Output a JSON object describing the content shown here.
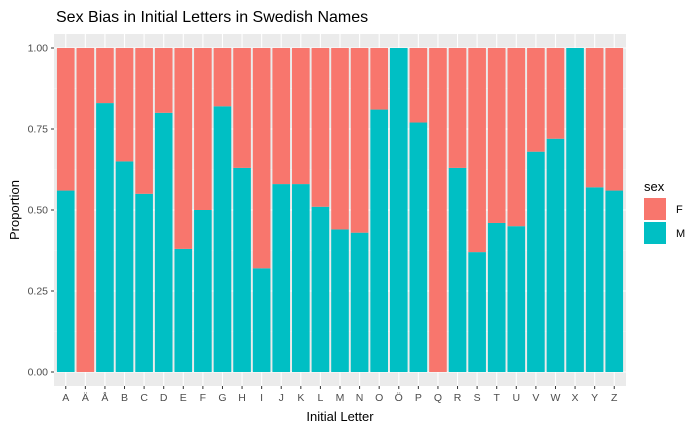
{
  "chart_data": {
    "type": "bar",
    "stacked": true,
    "title": "Sex Bias in Initial Letters in Swedish Names",
    "xlabel": "Initial Letter",
    "ylabel": "Proportion",
    "ylim": [
      0,
      1
    ],
    "yticks": [
      "0.00",
      "0.25",
      "0.50",
      "0.75",
      "1.00"
    ],
    "grid": true,
    "legend": {
      "title": "sex",
      "position": "right"
    },
    "categories": [
      "A",
      "Ä",
      "Å",
      "B",
      "C",
      "D",
      "E",
      "F",
      "G",
      "H",
      "I",
      "J",
      "K",
      "L",
      "M",
      "N",
      "O",
      "Ö",
      "P",
      "Q",
      "R",
      "S",
      "T",
      "U",
      "V",
      "W",
      "X",
      "Y",
      "Z"
    ],
    "series": [
      {
        "name": "F",
        "color": "#F8766D",
        "values": [
          0.44,
          1.0,
          0.17,
          0.35,
          0.45,
          0.2,
          0.62,
          0.5,
          0.18,
          0.37,
          0.68,
          0.42,
          0.42,
          0.49,
          0.56,
          0.57,
          0.19,
          0.0,
          0.23,
          1.0,
          0.37,
          0.63,
          0.54,
          0.55,
          0.32,
          0.28,
          0.0,
          0.43,
          0.44
        ]
      },
      {
        "name": "M",
        "color": "#00BFC4",
        "values": [
          0.56,
          0.0,
          0.83,
          0.65,
          0.55,
          0.8,
          0.38,
          0.5,
          0.82,
          0.63,
          0.32,
          0.58,
          0.58,
          0.51,
          0.44,
          0.43,
          0.81,
          1.0,
          0.77,
          0.0,
          0.63,
          0.37,
          0.46,
          0.45,
          0.68,
          0.72,
          1.0,
          0.57,
          0.56
        ]
      }
    ]
  }
}
